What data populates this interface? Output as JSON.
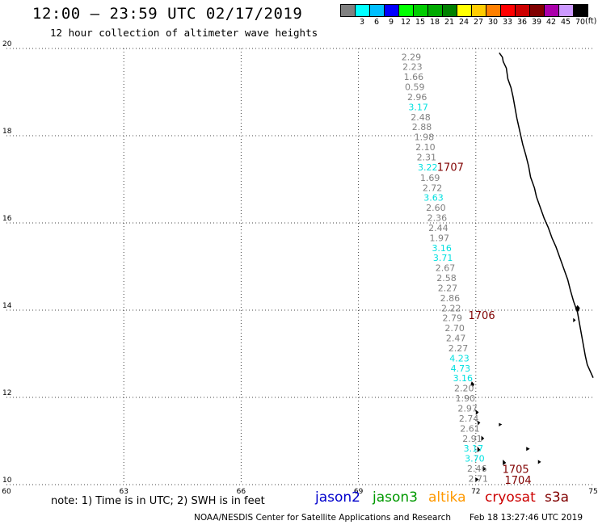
{
  "header": {
    "title": "12:00 – 23:59 UTC 02/17/2019",
    "subtitle": "12 hour collection of altimeter wave heights"
  },
  "colorbar": {
    "unit": "(ft)",
    "entries": [
      {
        "label": "",
        "color": "#808080"
      },
      {
        "label": "3",
        "color": "#00ffff"
      },
      {
        "label": "6",
        "color": "#00bfff"
      },
      {
        "label": "9",
        "color": "#0000ff"
      },
      {
        "label": "12",
        "color": "#00ff00"
      },
      {
        "label": "15",
        "color": "#00cc00"
      },
      {
        "label": "18",
        "color": "#00aa00"
      },
      {
        "label": "21",
        "color": "#008000"
      },
      {
        "label": "24",
        "color": "#ffff00"
      },
      {
        "label": "27",
        "color": "#ffcc00"
      },
      {
        "label": "30",
        "color": "#ff8000"
      },
      {
        "label": "33",
        "color": "#ff0000"
      },
      {
        "label": "36",
        "color": "#cc0000"
      },
      {
        "label": "39",
        "color": "#800000"
      },
      {
        "label": "42",
        "color": "#aa00aa"
      },
      {
        "label": "45",
        "color": "#cc99ff"
      },
      {
        "label": "70",
        "color": "#000000"
      }
    ]
  },
  "map": {
    "lon_range": [
      60,
      75
    ],
    "lat_range": [
      10,
      20
    ],
    "lon_ticks": [
      60,
      63,
      66,
      69,
      72,
      75
    ],
    "lat_ticks": [
      10,
      12,
      14,
      16,
      18,
      20
    ],
    "gridlines": true,
    "coastline_color": "#000000",
    "colors": {
      "gray": "#808080",
      "cyan": "#00e0e0",
      "pass_label": "#800000"
    },
    "observations": [
      {
        "lat": 19.81,
        "lon": 70.35,
        "v": "2.29",
        "c": "gray"
      },
      {
        "lat": 19.58,
        "lon": 70.38,
        "v": "2.23",
        "c": "gray"
      },
      {
        "lat": 19.35,
        "lon": 70.41,
        "v": "1.66",
        "c": "gray"
      },
      {
        "lat": 19.12,
        "lon": 70.44,
        "v": "0.59",
        "c": "gray"
      },
      {
        "lat": 18.89,
        "lon": 70.5,
        "v": "2.96",
        "c": "gray"
      },
      {
        "lat": 18.66,
        "lon": 70.53,
        "v": "3.17",
        "c": "cyan"
      },
      {
        "lat": 18.43,
        "lon": 70.59,
        "v": "2.48",
        "c": "gray"
      },
      {
        "lat": 18.2,
        "lon": 70.62,
        "v": "2.88",
        "c": "gray"
      },
      {
        "lat": 17.97,
        "lon": 70.68,
        "v": "1.98",
        "c": "gray"
      },
      {
        "lat": 17.74,
        "lon": 70.71,
        "v": "2.10",
        "c": "gray"
      },
      {
        "lat": 17.51,
        "lon": 70.74,
        "v": "2.31",
        "c": "gray"
      },
      {
        "lat": 17.28,
        "lon": 70.77,
        "v": "3.22",
        "c": "cyan"
      },
      {
        "lat": 17.04,
        "lon": 70.83,
        "v": "1.69",
        "c": "gray"
      },
      {
        "lat": 16.81,
        "lon": 70.89,
        "v": "2.72",
        "c": "gray"
      },
      {
        "lat": 16.58,
        "lon": 70.92,
        "v": "3.63",
        "c": "cyan"
      },
      {
        "lat": 16.35,
        "lon": 70.98,
        "v": "2.60",
        "c": "gray"
      },
      {
        "lat": 16.12,
        "lon": 71.01,
        "v": "2.36",
        "c": "gray"
      },
      {
        "lat": 15.89,
        "lon": 71.04,
        "v": "2.44",
        "c": "gray"
      },
      {
        "lat": 15.66,
        "lon": 71.07,
        "v": "1.97",
        "c": "gray"
      },
      {
        "lat": 15.43,
        "lon": 71.13,
        "v": "3.16",
        "c": "cyan"
      },
      {
        "lat": 15.2,
        "lon": 71.16,
        "v": "3.71",
        "c": "cyan"
      },
      {
        "lat": 14.97,
        "lon": 71.22,
        "v": "2.67",
        "c": "gray"
      },
      {
        "lat": 14.74,
        "lon": 71.25,
        "v": "2.58",
        "c": "gray"
      },
      {
        "lat": 14.51,
        "lon": 71.28,
        "v": "2.27",
        "c": "gray"
      },
      {
        "lat": 14.28,
        "lon": 71.34,
        "v": "2.86",
        "c": "gray"
      },
      {
        "lat": 14.05,
        "lon": 71.37,
        "v": "2.22",
        "c": "gray"
      },
      {
        "lat": 13.82,
        "lon": 71.4,
        "v": "2.79",
        "c": "gray"
      },
      {
        "lat": 13.59,
        "lon": 71.46,
        "v": "2.70",
        "c": "gray"
      },
      {
        "lat": 13.36,
        "lon": 71.49,
        "v": "2.47",
        "c": "gray"
      },
      {
        "lat": 13.13,
        "lon": 71.55,
        "v": "2.27",
        "c": "gray"
      },
      {
        "lat": 12.9,
        "lon": 71.58,
        "v": "4.23",
        "c": "cyan"
      },
      {
        "lat": 12.67,
        "lon": 71.61,
        "v": "4.73",
        "c": "cyan"
      },
      {
        "lat": 12.44,
        "lon": 71.67,
        "v": "3.16",
        "c": "cyan"
      },
      {
        "lat": 12.21,
        "lon": 71.7,
        "v": "2.20",
        "c": "gray"
      },
      {
        "lat": 11.98,
        "lon": 71.73,
        "v": "1.90",
        "c": "gray"
      },
      {
        "lat": 11.75,
        "lon": 71.79,
        "v": "2.97",
        "c": "gray"
      },
      {
        "lat": 11.52,
        "lon": 71.82,
        "v": "2.74",
        "c": "gray"
      },
      {
        "lat": 11.29,
        "lon": 71.85,
        "v": "2.61",
        "c": "gray"
      },
      {
        "lat": 11.06,
        "lon": 71.91,
        "v": "2.91",
        "c": "gray"
      },
      {
        "lat": 10.83,
        "lon": 71.94,
        "v": "3.17",
        "c": "cyan"
      },
      {
        "lat": 10.6,
        "lon": 71.97,
        "v": "3.70",
        "c": "cyan"
      },
      {
        "lat": 10.37,
        "lon": 72.03,
        "v": "2.46",
        "c": "gray"
      },
      {
        "lat": 10.14,
        "lon": 72.06,
        "v": "2.71",
        "c": "gray"
      }
    ],
    "pass_labels": [
      {
        "text": "1707",
        "lat": 17.27,
        "lon": 71.35
      },
      {
        "text": "1706",
        "lat": 13.87,
        "lon": 72.15
      },
      {
        "text": "1705",
        "lat": 10.34,
        "lon": 73.02
      },
      {
        "text": "1704",
        "lat": 10.09,
        "lon": 73.08
      }
    ],
    "coastline": [
      [
        72.6,
        19.9
      ],
      [
        72.68,
        19.8
      ],
      [
        72.7,
        19.7
      ],
      [
        72.78,
        19.55
      ],
      [
        72.82,
        19.3
      ],
      [
        72.9,
        19.1
      ],
      [
        72.95,
        18.9
      ],
      [
        73.0,
        18.65
      ],
      [
        73.05,
        18.4
      ],
      [
        73.1,
        18.2
      ],
      [
        73.15,
        18.0
      ],
      [
        73.2,
        17.8
      ],
      [
        73.28,
        17.55
      ],
      [
        73.35,
        17.3
      ],
      [
        73.4,
        17.05
      ],
      [
        73.5,
        16.8
      ],
      [
        73.55,
        16.6
      ],
      [
        73.65,
        16.35
      ],
      [
        73.75,
        16.1
      ],
      [
        73.85,
        15.9
      ],
      [
        73.95,
        15.65
      ],
      [
        74.05,
        15.45
      ],
      [
        74.15,
        15.2
      ],
      [
        74.25,
        14.95
      ],
      [
        74.35,
        14.7
      ],
      [
        74.42,
        14.45
      ],
      [
        74.5,
        14.2
      ],
      [
        74.6,
        13.95
      ],
      [
        74.65,
        13.7
      ],
      [
        74.7,
        13.45
      ],
      [
        74.75,
        13.2
      ],
      [
        74.8,
        12.95
      ],
      [
        74.85,
        12.75
      ],
      [
        74.95,
        12.55
      ],
      [
        75.0,
        12.45
      ]
    ],
    "islands": [
      [
        [
          74.6,
          14.1
        ],
        [
          74.65,
          14.05
        ],
        [
          74.62,
          13.98
        ],
        [
          74.55,
          14.03
        ],
        [
          74.6,
          14.1
        ]
      ],
      [
        [
          74.5,
          13.8
        ],
        [
          74.54,
          13.77
        ],
        [
          74.5,
          13.74
        ],
        [
          74.5,
          13.8
        ]
      ],
      [
        [
          71.9,
          12.35
        ],
        [
          71.95,
          12.3
        ],
        [
          71.92,
          12.25
        ],
        [
          71.88,
          12.3
        ],
        [
          71.9,
          12.35
        ]
      ],
      [
        [
          72.0,
          11.7
        ],
        [
          72.06,
          11.66
        ],
        [
          72.02,
          11.62
        ],
        [
          72.0,
          11.7
        ]
      ],
      [
        [
          72.05,
          11.45
        ],
        [
          72.1,
          11.42
        ],
        [
          72.06,
          11.38
        ],
        [
          72.05,
          11.45
        ]
      ],
      [
        [
          72.6,
          11.4
        ],
        [
          72.65,
          11.38
        ],
        [
          72.6,
          11.35
        ],
        [
          72.6,
          11.4
        ]
      ],
      [
        [
          72.15,
          11.1
        ],
        [
          72.2,
          11.06
        ],
        [
          72.15,
          11.02
        ],
        [
          72.15,
          11.1
        ]
      ],
      [
        [
          72.05,
          10.85
        ],
        [
          72.1,
          10.8
        ],
        [
          72.05,
          10.76
        ],
        [
          72.05,
          10.85
        ]
      ],
      [
        [
          73.3,
          10.85
        ],
        [
          73.36,
          10.82
        ],
        [
          73.3,
          10.79
        ],
        [
          73.3,
          10.85
        ]
      ],
      [
        [
          72.7,
          10.55
        ],
        [
          72.76,
          10.5
        ],
        [
          72.7,
          10.46
        ],
        [
          72.7,
          10.55
        ]
      ],
      [
        [
          72.2,
          10.4
        ],
        [
          72.25,
          10.36
        ],
        [
          72.2,
          10.33
        ],
        [
          72.2,
          10.4
        ]
      ],
      [
        [
          73.6,
          10.55
        ],
        [
          73.65,
          10.52
        ],
        [
          73.6,
          10.49
        ],
        [
          73.6,
          10.55
        ]
      ],
      [
        [
          72.0,
          10.15
        ],
        [
          72.06,
          10.12
        ],
        [
          72.0,
          10.08
        ],
        [
          72.0,
          10.15
        ]
      ]
    ]
  },
  "footer": {
    "note": "note: 1) Time is in UTC; 2) SWH is in feet",
    "legend": [
      {
        "label": "jason2",
        "color": "#0000cc"
      },
      {
        "label": "jason3",
        "color": "#009900"
      },
      {
        "label": "altika",
        "color": "#ff9900"
      },
      {
        "label": "cryosat",
        "color": "#cc0000"
      },
      {
        "label": "s3a",
        "color": "#800000"
      }
    ],
    "credit": "NOAA/NESDIS Center for Satellite Applications and Research",
    "timestamp": "Feb 18 13:27:46 UTC 2019"
  }
}
